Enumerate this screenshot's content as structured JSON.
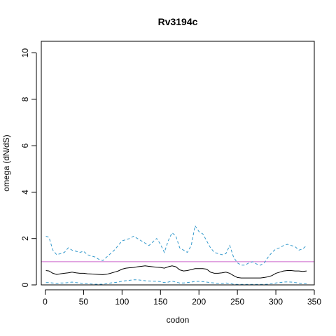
{
  "chart_data": {
    "type": "line",
    "title": "Rv3194c",
    "xlabel": "codon",
    "ylabel": "omega (dN/dS)",
    "xlim": [
      -5,
      350
    ],
    "ylim": [
      0,
      10.5
    ],
    "xticks": [
      0,
      50,
      100,
      150,
      200,
      250,
      300,
      350
    ],
    "yticks": [
      0,
      2,
      4,
      6,
      8,
      10
    ],
    "reference_line": {
      "y": 1,
      "color": "#cc66cc"
    },
    "series": [
      {
        "style": "solid",
        "color": "#000000",
        "x": [
          1,
          5,
          10,
          15,
          20,
          25,
          30,
          35,
          40,
          45,
          50,
          55,
          60,
          65,
          70,
          75,
          80,
          85,
          90,
          95,
          100,
          105,
          110,
          115,
          120,
          125,
          130,
          135,
          140,
          145,
          150,
          155,
          160,
          165,
          170,
          175,
          180,
          185,
          190,
          195,
          200,
          205,
          210,
          215,
          220,
          225,
          230,
          235,
          240,
          245,
          250,
          255,
          260,
          265,
          270,
          275,
          280,
          285,
          290,
          295,
          300,
          305,
          310,
          315,
          320,
          325,
          330,
          335,
          340
        ],
        "values": [
          0.62,
          0.6,
          0.5,
          0.45,
          0.48,
          0.5,
          0.52,
          0.55,
          0.52,
          0.5,
          0.5,
          0.48,
          0.47,
          0.46,
          0.45,
          0.44,
          0.46,
          0.5,
          0.55,
          0.6,
          0.68,
          0.72,
          0.74,
          0.75,
          0.78,
          0.8,
          0.82,
          0.8,
          0.78,
          0.76,
          0.75,
          0.72,
          0.78,
          0.82,
          0.78,
          0.65,
          0.6,
          0.62,
          0.66,
          0.7,
          0.7,
          0.7,
          0.68,
          0.55,
          0.5,
          0.5,
          0.52,
          0.55,
          0.5,
          0.4,
          0.32,
          0.3,
          0.3,
          0.3,
          0.3,
          0.3,
          0.3,
          0.32,
          0.35,
          0.4,
          0.5,
          0.55,
          0.6,
          0.62,
          0.62,
          0.6,
          0.6,
          0.58,
          0.6
        ]
      },
      {
        "style": "dashed",
        "color": "#3399cc",
        "x": [
          1,
          5,
          10,
          15,
          20,
          25,
          30,
          35,
          40,
          45,
          50,
          55,
          60,
          65,
          70,
          75,
          80,
          85,
          90,
          95,
          100,
          105,
          110,
          115,
          120,
          125,
          130,
          135,
          140,
          145,
          150,
          155,
          160,
          165,
          170,
          175,
          180,
          185,
          190,
          195,
          200,
          205,
          210,
          215,
          220,
          225,
          230,
          235,
          240,
          245,
          250,
          255,
          260,
          265,
          270,
          275,
          280,
          285,
          290,
          295,
          300,
          305,
          310,
          315,
          320,
          325,
          330,
          335,
          340
        ],
        "values": [
          2.1,
          2.05,
          1.5,
          1.3,
          1.35,
          1.4,
          1.6,
          1.5,
          1.45,
          1.4,
          1.45,
          1.3,
          1.25,
          1.2,
          1.1,
          1.05,
          1.2,
          1.35,
          1.5,
          1.7,
          1.9,
          1.95,
          2.0,
          2.1,
          2.0,
          1.9,
          1.8,
          1.7,
          1.85,
          2.0,
          1.75,
          1.4,
          1.9,
          2.25,
          2.1,
          1.6,
          1.5,
          1.4,
          1.7,
          2.55,
          2.3,
          2.2,
          1.9,
          1.6,
          1.4,
          1.35,
          1.3,
          1.35,
          1.7,
          1.2,
          0.95,
          0.85,
          0.85,
          0.95,
          1.0,
          0.9,
          0.85,
          0.95,
          1.2,
          1.4,
          1.55,
          1.6,
          1.7,
          1.75,
          1.7,
          1.65,
          1.5,
          1.55,
          1.7
        ]
      },
      {
        "style": "dashed",
        "color": "#3399cc",
        "x": [
          1,
          5,
          10,
          15,
          20,
          25,
          30,
          35,
          40,
          45,
          50,
          55,
          60,
          65,
          70,
          75,
          80,
          85,
          90,
          95,
          100,
          105,
          110,
          115,
          120,
          125,
          130,
          135,
          140,
          145,
          150,
          155,
          160,
          165,
          170,
          175,
          180,
          185,
          190,
          195,
          200,
          205,
          210,
          215,
          220,
          225,
          230,
          235,
          240,
          245,
          250,
          255,
          260,
          265,
          270,
          275,
          280,
          285,
          290,
          295,
          300,
          305,
          310,
          315,
          320,
          325,
          330,
          335,
          340
        ],
        "values": [
          0.1,
          0.1,
          0.08,
          0.07,
          0.08,
          0.08,
          0.1,
          0.12,
          0.1,
          0.08,
          0.07,
          0.05,
          0.04,
          0.03,
          0.03,
          0.03,
          0.05,
          0.08,
          0.1,
          0.12,
          0.16,
          0.18,
          0.2,
          0.22,
          0.22,
          0.2,
          0.18,
          0.17,
          0.16,
          0.16,
          0.14,
          0.1,
          0.12,
          0.16,
          0.12,
          0.08,
          0.08,
          0.1,
          0.12,
          0.15,
          0.15,
          0.14,
          0.12,
          0.1,
          0.08,
          0.07,
          0.07,
          0.08,
          0.06,
          0.03,
          0.02,
          0.02,
          0.02,
          0.02,
          0.02,
          0.02,
          0.02,
          0.02,
          0.03,
          0.05,
          0.08,
          0.1,
          0.12,
          0.13,
          0.12,
          0.1,
          0.08,
          0.06,
          0.05
        ]
      }
    ]
  }
}
